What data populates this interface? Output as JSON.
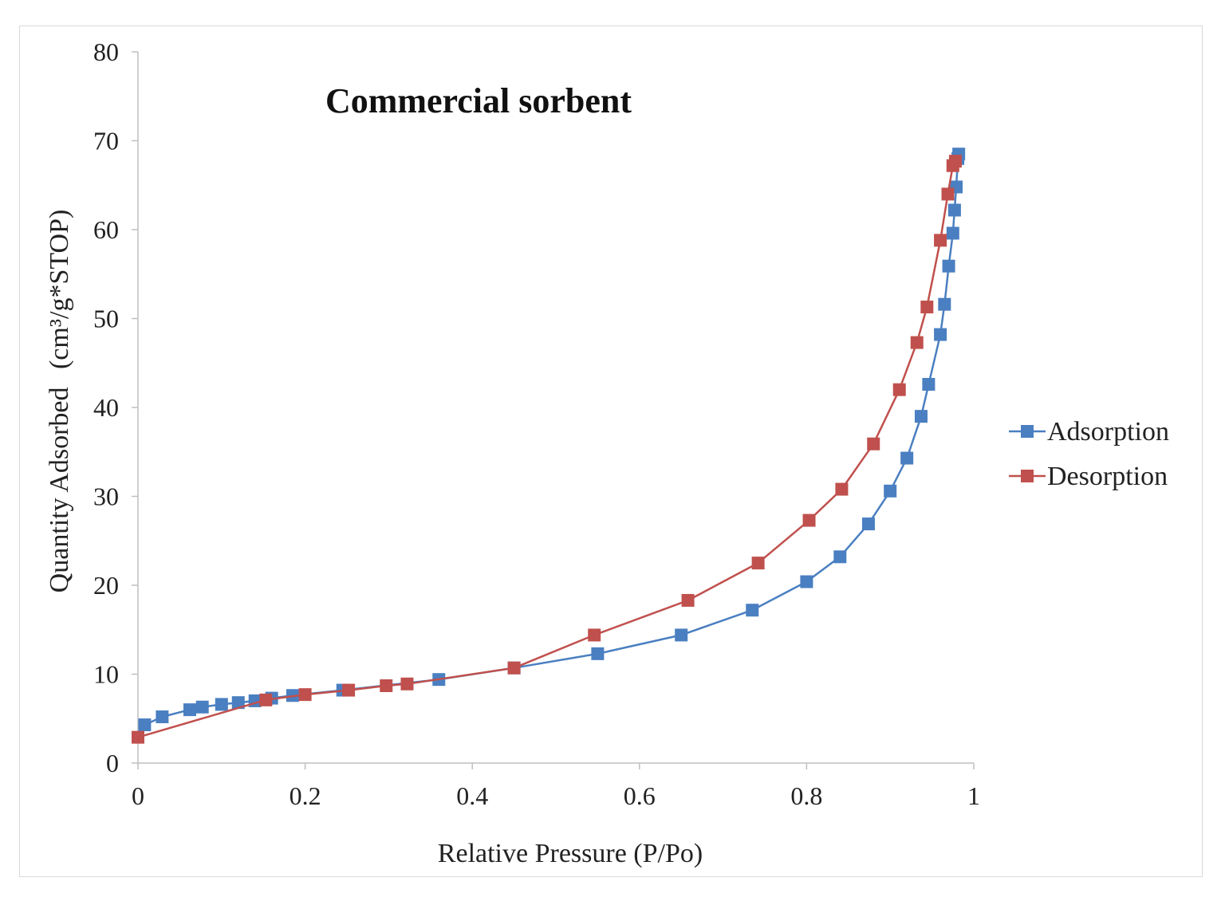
{
  "chart_data": {
    "type": "line",
    "title": "Commercial sorbent",
    "xlabel": "Relative Pressure (P/Po)",
    "ylabel": "Quantity Adsorbed",
    "ylabel_unit": "(cm³/g*STOP)",
    "xlim": [
      0,
      1
    ],
    "ylim": [
      0,
      80
    ],
    "xticks": [
      "0",
      "0.2",
      "0.4",
      "0.6",
      "0.8",
      "1"
    ],
    "xtick_values": [
      0,
      0.2,
      0.4,
      0.6,
      0.8,
      1
    ],
    "yticks": [
      "0",
      "10",
      "20",
      "30",
      "40",
      "50",
      "60",
      "70",
      "80"
    ],
    "ytick_values": [
      0,
      10,
      20,
      30,
      40,
      50,
      60,
      70,
      80
    ],
    "grid": false,
    "legend_position": "right",
    "series": [
      {
        "name": "Adsorption",
        "color": "#4a7fc1",
        "marker": "square",
        "x": [
          0.008,
          0.029,
          0.062,
          0.077,
          0.1,
          0.12,
          0.14,
          0.16,
          0.185,
          0.245,
          0.36,
          0.45,
          0.55,
          0.65,
          0.735,
          0.8,
          0.84,
          0.874,
          0.9,
          0.92,
          0.937,
          0.946,
          0.96,
          0.965,
          0.97,
          0.975,
          0.977,
          0.979,
          0.981,
          0.982
        ],
        "values": [
          4.3,
          5.2,
          6.0,
          6.3,
          6.6,
          6.8,
          7.0,
          7.3,
          7.6,
          8.2,
          9.4,
          10.7,
          12.3,
          14.4,
          17.2,
          20.4,
          23.2,
          26.9,
          30.6,
          34.3,
          39.0,
          42.6,
          48.2,
          51.6,
          55.9,
          59.6,
          62.2,
          64.8,
          68.0,
          68.5
        ]
      },
      {
        "name": "Desorption",
        "color": "#c0504d",
        "marker": "square",
        "x": [
          0.0,
          0.153,
          0.2,
          0.252,
          0.297,
          0.322,
          0.45,
          0.546,
          0.658,
          0.742,
          0.803,
          0.842,
          0.88,
          0.911,
          0.932,
          0.944,
          0.96,
          0.969,
          0.975,
          0.978
        ],
        "values": [
          2.9,
          7.1,
          7.7,
          8.2,
          8.7,
          8.9,
          10.7,
          14.4,
          18.3,
          22.5,
          27.3,
          30.8,
          35.9,
          42.0,
          47.3,
          51.3,
          58.8,
          64.0,
          67.2,
          67.7
        ]
      }
    ]
  }
}
